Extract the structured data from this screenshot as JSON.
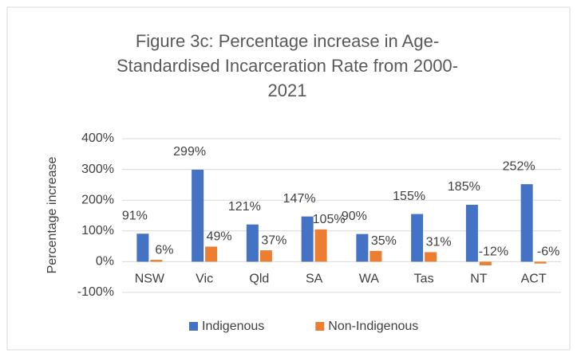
{
  "chart_data": {
    "type": "bar",
    "title": "Figure 3c: Percentage increase in Age-Standardised Incarceration Rate from 2000-2021",
    "y_label": "Percentage increase",
    "categories": [
      "NSW",
      "Vic",
      "Qld",
      "SA",
      "WA",
      "Tas",
      "NT",
      "ACT"
    ],
    "series": [
      {
        "name": "Indigenous",
        "color": "#4472c4",
        "values": [
          91,
          299,
          121,
          147,
          90,
          155,
          185,
          252
        ],
        "value_labels": [
          "91%",
          "299%",
          "121%",
          "147%",
          "90%",
          "155%",
          "185%",
          "252%"
        ]
      },
      {
        "name": "Non-Indigenous",
        "color": "#ed7d31",
        "values": [
          6,
          49,
          37,
          105,
          35,
          31,
          -12,
          -6
        ],
        "value_labels": [
          "6%",
          "49%",
          "37%",
          "105%",
          "35%",
          "31%",
          "-12%",
          "-6%"
        ]
      }
    ],
    "ylim": [
      -100,
      400
    ],
    "yticks": [
      {
        "value": -100,
        "label": "-100%"
      },
      {
        "value": 0,
        "label": "0%"
      },
      {
        "value": 100,
        "label": "100%"
      },
      {
        "value": 200,
        "label": "200%"
      },
      {
        "value": 300,
        "label": "300%"
      },
      {
        "value": 400,
        "label": "400%"
      }
    ],
    "grid": true,
    "legend": "bottom"
  }
}
